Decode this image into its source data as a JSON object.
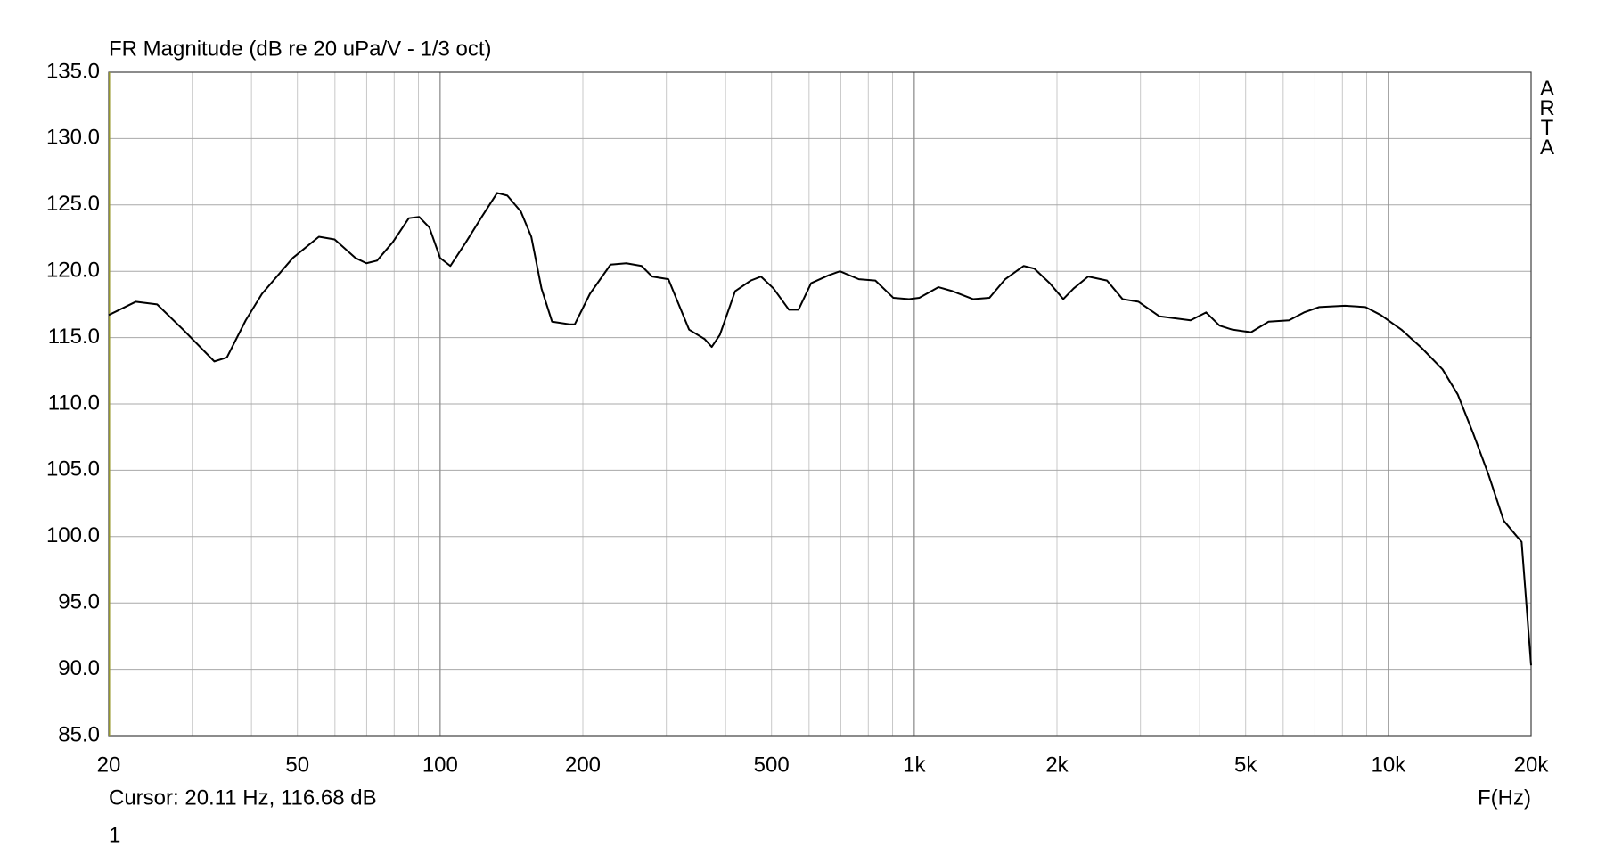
{
  "chart_data": {
    "type": "line",
    "title": "FR Magnitude (dB re 20 uPa/V - 1/3 oct)",
    "watermark": "ARTA",
    "cursor_text": "Cursor: 20.11 Hz, 116.68 dB",
    "x_label": "F(Hz)",
    "footer": "1",
    "x": [
      20,
      22.8,
      25.3,
      28.7,
      33.4,
      35.5,
      38.9,
      42.1,
      48.9,
      55.5,
      59.9,
      66.3,
      69.9,
      73.6,
      79.5,
      85.9,
      90.3,
      94.9,
      100,
      105.1,
      113.4,
      122.4,
      131.9,
      138.6,
      148,
      155.7,
      163.6,
      172.2,
      187.6,
      192.3,
      207,
      228.8,
      247,
      266,
      280,
      303,
      335,
      361,
      374,
      389,
      419,
      452,
      475,
      505,
      544,
      570,
      606,
      660,
      697,
      764,
      828,
      903,
      975,
      1025,
      1125,
      1204,
      1330,
      1441,
      1555,
      1701,
      1792,
      1931,
      2062,
      2168,
      2327,
      2550,
      2750,
      2972,
      3290,
      3827,
      4126,
      4405,
      4684,
      5134,
      5589,
      6172,
      6641,
      7148,
      8097,
      8947,
      9640,
      10650,
      11770,
      13010,
      14010,
      15090,
      16250,
      17510,
      18680,
      19100,
      20000
    ],
    "values": [
      116.7,
      117.7,
      117.5,
      115.6,
      113.2,
      113.5,
      116.3,
      118.3,
      121.0,
      122.6,
      122.4,
      121.0,
      120.6,
      120.8,
      122.2,
      124.0,
      124.1,
      123.3,
      121.0,
      120.4,
      122.2,
      124.1,
      125.9,
      125.7,
      124.5,
      122.6,
      118.7,
      116.2,
      116.0,
      116.0,
      118.3,
      120.5,
      120.6,
      120.4,
      119.6,
      119.4,
      115.6,
      114.9,
      114.3,
      115.2,
      118.5,
      119.3,
      119.6,
      118.7,
      117.1,
      117.1,
      119.1,
      119.7,
      120.0,
      119.4,
      119.3,
      118.0,
      117.9,
      118.0,
      118.8,
      118.5,
      117.9,
      118.0,
      119.4,
      120.4,
      120.2,
      119.1,
      117.9,
      118.7,
      119.6,
      119.3,
      117.9,
      117.7,
      116.6,
      116.3,
      116.9,
      115.9,
      115.6,
      115.4,
      116.2,
      116.3,
      116.9,
      117.3,
      117.4,
      117.3,
      116.7,
      115.6,
      114.2,
      112.6,
      110.7,
      107.8,
      104.7,
      101.2,
      100.0,
      99.6,
      90.3
    ],
    "color": "#000000",
    "xscale": "log",
    "xlim": [
      20,
      20000
    ],
    "ylim": [
      85,
      135
    ],
    "xticks": [
      20,
      50,
      100,
      200,
      500,
      {
        "value": 1000,
        "label": "1k"
      },
      {
        "value": 2000,
        "label": "2k"
      },
      {
        "value": 5000,
        "label": "5k"
      },
      {
        "value": 10000,
        "label": "10k"
      },
      {
        "value": 20000,
        "label": "20k"
      }
    ],
    "major_xgrid": [
      100,
      1000,
      10000
    ],
    "minor_xgrid": [
      30,
      40,
      50,
      60,
      70,
      80,
      90,
      200,
      300,
      400,
      500,
      600,
      700,
      800,
      900,
      2000,
      3000,
      4000,
      5000,
      6000,
      7000,
      8000,
      9000
    ],
    "yticks": [
      {
        "value": 85,
        "label": "85.0"
      },
      {
        "value": 90,
        "label": "90.0"
      },
      {
        "value": 95,
        "label": "95.0"
      },
      {
        "value": 100,
        "label": "100.0"
      },
      {
        "value": 105,
        "label": "105.0"
      },
      {
        "value": 110,
        "label": "110.0"
      },
      {
        "value": 115,
        "label": "115.0"
      },
      {
        "value": 120,
        "label": "120.0"
      },
      {
        "value": 125,
        "label": "125.0"
      },
      {
        "value": 130,
        "label": "130.0"
      },
      {
        "value": 135,
        "label": "135.0"
      }
    ],
    "grid": true
  }
}
